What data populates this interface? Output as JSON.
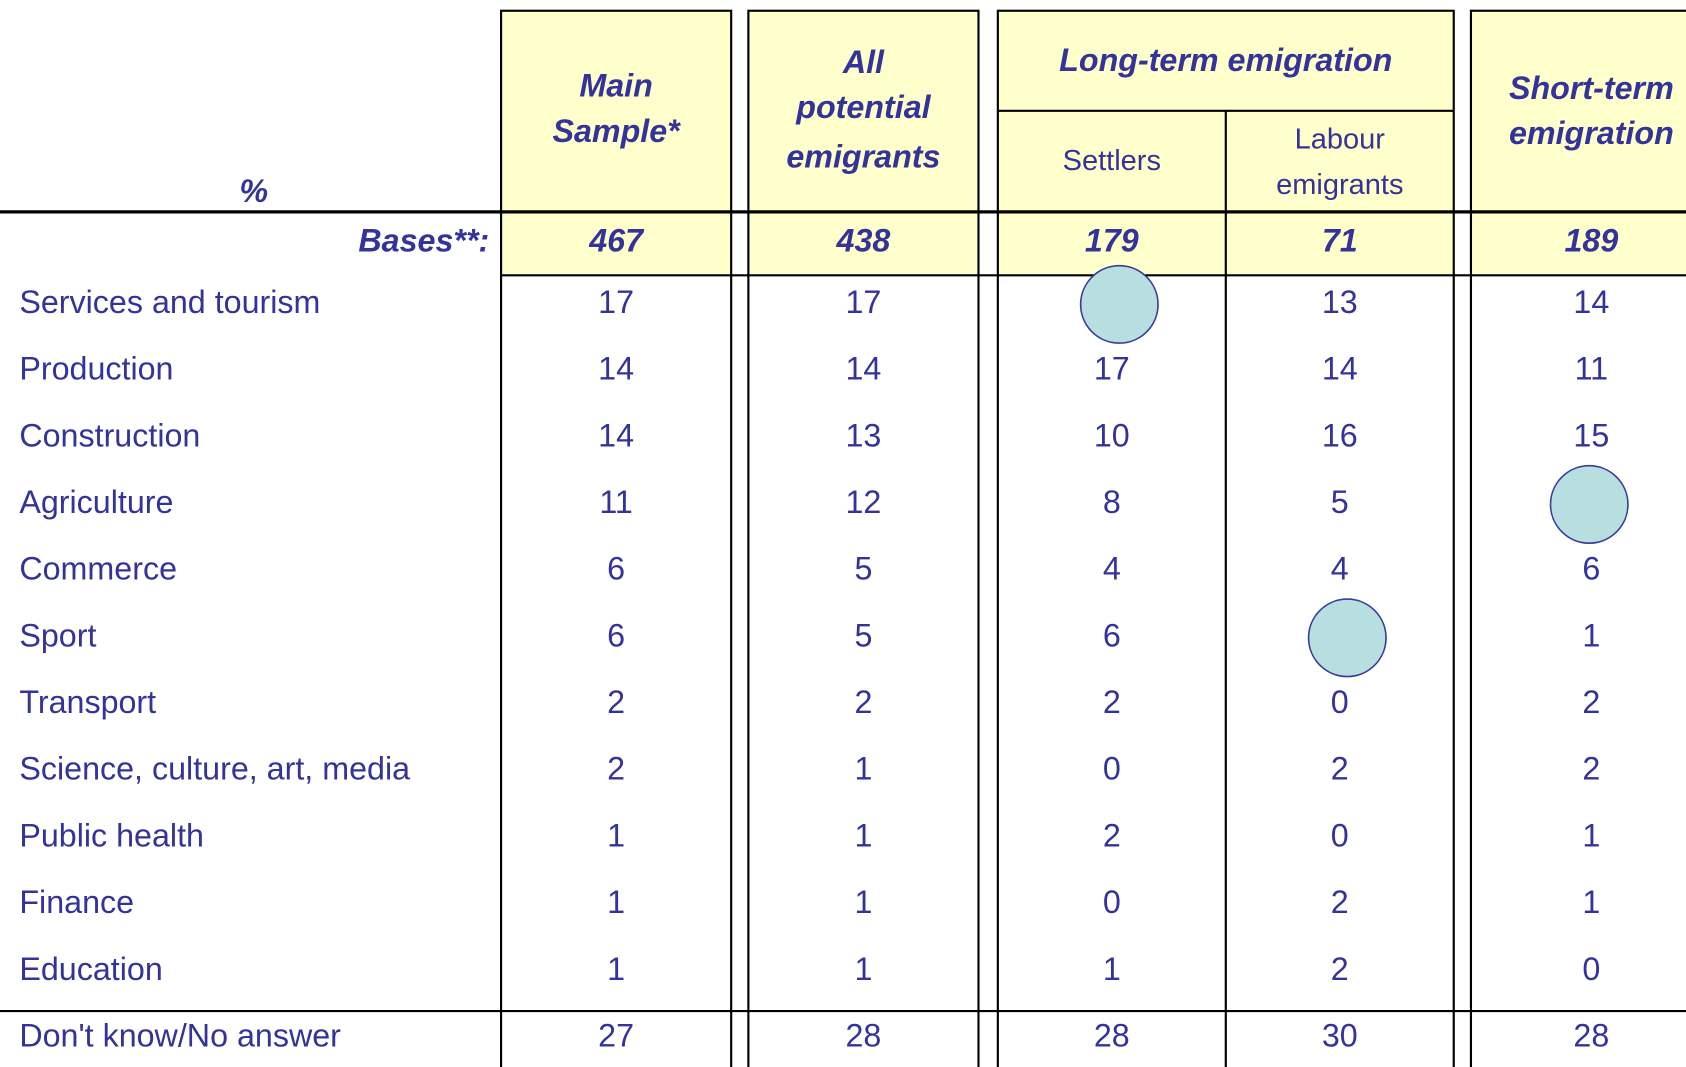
{
  "header": {
    "row_label": "%",
    "columns": [
      {
        "lines": [
          "Main",
          "Sample*"
        ]
      },
      {
        "lines": [
          "All",
          "potential",
          "emigrants"
        ]
      },
      {
        "group": "Long-term emigration",
        "subcolumns": [
          {
            "lines": [
              "Settlers"
            ]
          },
          {
            "lines": [
              "Labour",
              "emigrants"
            ]
          }
        ]
      },
      {
        "lines": [
          "Short-term",
          "emigration"
        ]
      }
    ]
  },
  "bases": {
    "label": "Bases**:",
    "values": [
      467,
      438,
      179,
      71,
      189
    ]
  },
  "rows": [
    {
      "label": "Services and tourism",
      "values": [
        17,
        17,
        null,
        13,
        14
      ]
    },
    {
      "label": "Production",
      "values": [
        14,
        14,
        17,
        14,
        11
      ]
    },
    {
      "label": "Construction",
      "values": [
        14,
        13,
        10,
        16,
        15
      ]
    },
    {
      "label": "Agriculture",
      "values": [
        11,
        12,
        8,
        5,
        null
      ]
    },
    {
      "label": "Commerce",
      "values": [
        6,
        5,
        4,
        4,
        6
      ]
    },
    {
      "label": "Sport",
      "values": [
        6,
        5,
        6,
        null,
        1
      ]
    },
    {
      "label": "Transport",
      "values": [
        2,
        2,
        2,
        0,
        2
      ]
    },
    {
      "label": "Science, culture, art, media",
      "values": [
        2,
        1,
        0,
        2,
        2
      ]
    },
    {
      "label": "Public health",
      "values": [
        1,
        1,
        2,
        0,
        1
      ]
    },
    {
      "label": "Finance",
      "values": [
        1,
        1,
        0,
        2,
        1
      ]
    },
    {
      "label": "Education",
      "values": [
        1,
        1,
        1,
        2,
        0
      ]
    },
    {
      "label": "Don't know/No answer",
      "values": [
        27,
        28,
        28,
        30,
        28
      ]
    }
  ]
}
